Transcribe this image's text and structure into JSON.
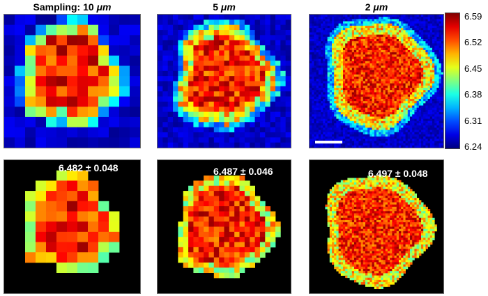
{
  "titles": [
    {
      "prefix": "Sampling: 10 ",
      "unit": "μm"
    },
    {
      "prefix": "5 ",
      "unit": "μm"
    },
    {
      "prefix": "2 ",
      "unit": "μm"
    }
  ],
  "stats": [
    "6.482 ± 0.048",
    "6.487 ± 0.046",
    "6.497 ± 0.048"
  ],
  "colorbar": {
    "ticks": [
      "6.59",
      "6.52",
      "6.45",
      "6.38",
      "6.31",
      "6.24"
    ],
    "min": 6.24,
    "max": 6.59,
    "colormap": "jet"
  },
  "scale_bar_visible": true
}
